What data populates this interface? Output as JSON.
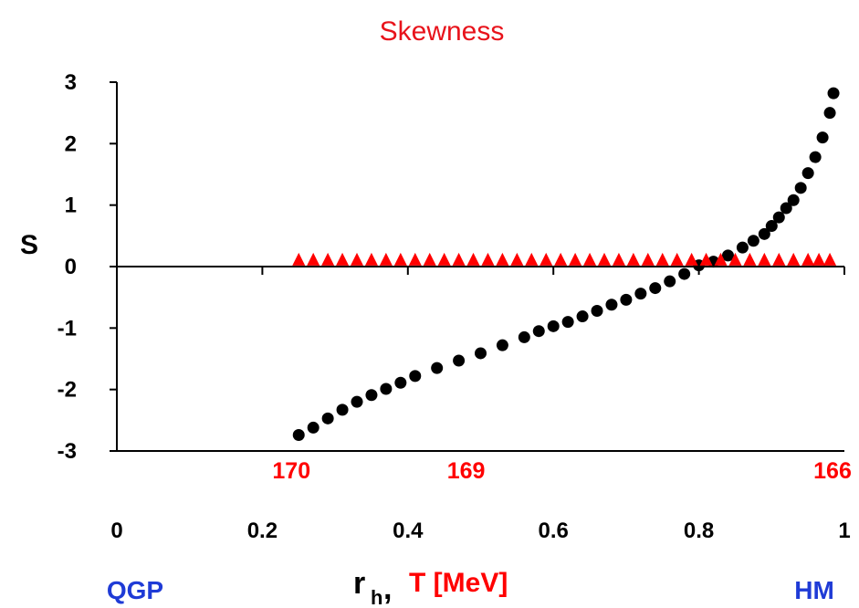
{
  "chart_data": {
    "type": "scatter",
    "title": "Skewness",
    "ylabel": "S",
    "xlabel": {
      "symbol": "r",
      "subscript": "h",
      "separator": ",",
      "second": "T [MeV]"
    },
    "ylim": [
      -3,
      3
    ],
    "xlim": [
      0,
      1
    ],
    "y_ticks": [
      "3",
      "2",
      "1",
      "0",
      "-1",
      "-2",
      "-3"
    ],
    "x_ticks": [
      "0",
      "0.2",
      "0.4",
      "0.6",
      "0.8",
      "1"
    ],
    "top_axis_ticks": [
      {
        "label": "170",
        "r": 0.24
      },
      {
        "label": "169",
        "r": 0.48
      },
      {
        "label": "166",
        "r": 1.0
      }
    ],
    "corner_labels": {
      "left": "QGP",
      "right": "HM"
    },
    "series": [
      {
        "marker": "circle",
        "color": "#000000",
        "points": [
          [
            0.25,
            -2.74
          ],
          [
            0.27,
            -2.62
          ],
          [
            0.29,
            -2.47
          ],
          [
            0.31,
            -2.33
          ],
          [
            0.33,
            -2.2
          ],
          [
            0.35,
            -2.09
          ],
          [
            0.37,
            -1.99
          ],
          [
            0.39,
            -1.89
          ],
          [
            0.41,
            -1.78
          ],
          [
            0.44,
            -1.65
          ],
          [
            0.47,
            -1.53
          ],
          [
            0.5,
            -1.41
          ],
          [
            0.53,
            -1.28
          ],
          [
            0.56,
            -1.15
          ],
          [
            0.58,
            -1.05
          ],
          [
            0.6,
            -0.97
          ],
          [
            0.62,
            -0.9
          ],
          [
            0.64,
            -0.81
          ],
          [
            0.66,
            -0.72
          ],
          [
            0.68,
            -0.62
          ],
          [
            0.7,
            -0.54
          ],
          [
            0.72,
            -0.44
          ],
          [
            0.74,
            -0.35
          ],
          [
            0.76,
            -0.24
          ],
          [
            0.78,
            -0.12
          ],
          [
            0.8,
            0.02
          ],
          [
            0.82,
            0.08
          ],
          [
            0.84,
            0.18
          ],
          [
            0.86,
            0.31
          ],
          [
            0.875,
            0.42
          ],
          [
            0.89,
            0.53
          ],
          [
            0.9,
            0.66
          ],
          [
            0.91,
            0.8
          ],
          [
            0.92,
            0.95
          ],
          [
            0.93,
            1.08
          ],
          [
            0.94,
            1.28
          ],
          [
            0.95,
            1.52
          ],
          [
            0.96,
            1.78
          ],
          [
            0.97,
            2.1
          ],
          [
            0.98,
            2.5
          ],
          [
            0.985,
            2.82
          ]
        ]
      },
      {
        "marker": "triangle",
        "color": "#ff0000",
        "points": [
          [
            0.25,
            0.12
          ],
          [
            0.27,
            0.12
          ],
          [
            0.29,
            0.12
          ],
          [
            0.31,
            0.12
          ],
          [
            0.33,
            0.12
          ],
          [
            0.35,
            0.12
          ],
          [
            0.37,
            0.12
          ],
          [
            0.39,
            0.12
          ],
          [
            0.41,
            0.12
          ],
          [
            0.43,
            0.12
          ],
          [
            0.45,
            0.12
          ],
          [
            0.47,
            0.12
          ],
          [
            0.49,
            0.12
          ],
          [
            0.51,
            0.12
          ],
          [
            0.53,
            0.12
          ],
          [
            0.55,
            0.12
          ],
          [
            0.57,
            0.12
          ],
          [
            0.59,
            0.12
          ],
          [
            0.61,
            0.12
          ],
          [
            0.63,
            0.12
          ],
          [
            0.65,
            0.12
          ],
          [
            0.67,
            0.12
          ],
          [
            0.69,
            0.12
          ],
          [
            0.71,
            0.12
          ],
          [
            0.73,
            0.12
          ],
          [
            0.75,
            0.12
          ],
          [
            0.77,
            0.12
          ],
          [
            0.79,
            0.12
          ],
          [
            0.81,
            0.12
          ],
          [
            0.83,
            0.12
          ],
          [
            0.85,
            0.12
          ],
          [
            0.87,
            0.12
          ],
          [
            0.89,
            0.12
          ],
          [
            0.91,
            0.12
          ],
          [
            0.93,
            0.12
          ],
          [
            0.95,
            0.12
          ],
          [
            0.965,
            0.12
          ],
          [
            0.98,
            0.12
          ]
        ]
      }
    ]
  }
}
